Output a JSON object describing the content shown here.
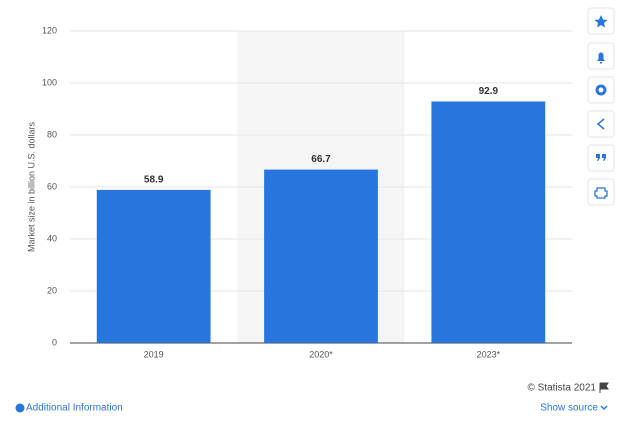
{
  "chart_data": {
    "type": "bar",
    "y_label": "Market size in billion U.S. dollars",
    "categories": [
      "2019",
      "2020*",
      "2023*"
    ],
    "values": [
      58.9,
      66.7,
      92.9
    ],
    "color": "#2876dd",
    "highlight": "2020*",
    "ylim": [
      0,
      120
    ],
    "yticks": [
      0,
      20,
      40,
      60,
      80,
      100,
      120
    ],
    "grid": true
  },
  "footer": {
    "copyright": "© Statista 2021",
    "additional_info": "Additional Information",
    "show_source": "Show source"
  }
}
